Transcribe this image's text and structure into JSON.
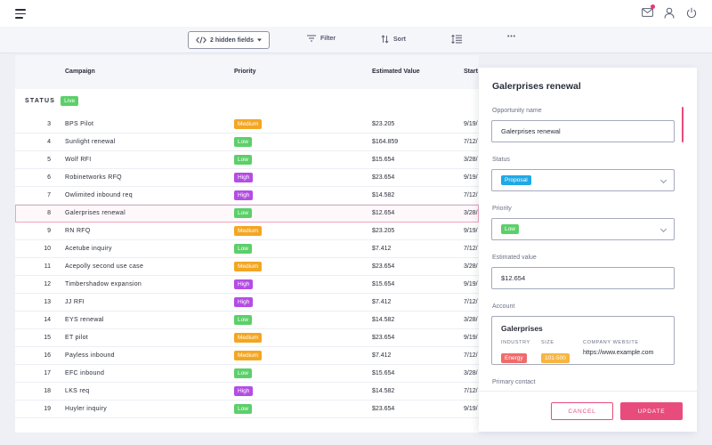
{
  "toolbar": {
    "hidden_fields_label": "2 hidden fields",
    "filter_label": "Filter",
    "sort_label": "Sort"
  },
  "table": {
    "columns": [
      "Campaign",
      "Priority",
      "Estimated Value",
      "Start"
    ],
    "status_label": "STATUS",
    "status_value": "Live",
    "rows": [
      {
        "num": "3",
        "name": "BPS Pilot",
        "priority": "Medium",
        "value": "$23.205",
        "start": "9/19/"
      },
      {
        "num": "4",
        "name": "Sunlight renewal",
        "priority": "Low",
        "value": "$164.859",
        "start": "7/12/"
      },
      {
        "num": "5",
        "name": "Wolf RFI",
        "priority": "Low",
        "value": "$15.654",
        "start": "3/28/"
      },
      {
        "num": "6",
        "name": "Robinetworks RFQ",
        "priority": "High",
        "value": "$23.654",
        "start": "9/19/"
      },
      {
        "num": "7",
        "name": "Owlimited inbound req",
        "priority": "High",
        "value": "$14.582",
        "start": "7/12/"
      },
      {
        "num": "8",
        "name": "Galerprises renewal",
        "priority": "Low",
        "value": "$12.654",
        "start": "3/28/"
      },
      {
        "num": "9",
        "name": "RN RFQ",
        "priority": "Medium",
        "value": "$23.205",
        "start": "9/19/"
      },
      {
        "num": "10",
        "name": "Acetube inquiry",
        "priority": "Low",
        "value": "$7.412",
        "start": "7/12/"
      },
      {
        "num": "11",
        "name": "Acepolly second use case",
        "priority": "Medium",
        "value": "$23.654",
        "start": "3/28/"
      },
      {
        "num": "12",
        "name": "Timbershadow expansion",
        "priority": "High",
        "value": "$15.654",
        "start": "9/19/"
      },
      {
        "num": "13",
        "name": "JJ RFI",
        "priority": "High",
        "value": "$7.412",
        "start": "7/12/"
      },
      {
        "num": "14",
        "name": "EYS renewal",
        "priority": "Low",
        "value": "$14.582",
        "start": "3/28/"
      },
      {
        "num": "15",
        "name": "ET pilot",
        "priority": "Medium",
        "value": "$23.654",
        "start": "9/19/"
      },
      {
        "num": "16",
        "name": "Payless inbound",
        "priority": "Medium",
        "value": "$7.412",
        "start": "7/12/"
      },
      {
        "num": "17",
        "name": "EFC inbound",
        "priority": "Low",
        "value": "$15.654",
        "start": "3/28/"
      },
      {
        "num": "18",
        "name": "LKS req",
        "priority": "High",
        "value": "$14.582",
        "start": "7/12/"
      },
      {
        "num": "19",
        "name": "Huyler inquiry",
        "priority": "Low",
        "value": "$23.654",
        "start": "9/19/"
      }
    ],
    "selected_row": "8"
  },
  "panel": {
    "title": "Galerprises renewal",
    "opportunity_label": "Opportunity name",
    "opportunity_value": "Galerprises renewal",
    "status_label": "Status",
    "status_value": "Proposal",
    "priority_label": "Priority",
    "priority_value": "Low",
    "estimated_label": "Estimated value",
    "estimated_value": "$12.654",
    "account_label": "Account",
    "account": {
      "name": "Galerprises",
      "industry_label": "INDUSTRY",
      "industry": "Energy",
      "size_label": "SIZE",
      "size": "101-500",
      "website_label": "COMPANY WEBSITE",
      "website": "https://www.example.com"
    },
    "contact_label": "Primary contact",
    "cancel_label": "CANCEL",
    "update_label": "UPDATE"
  },
  "colors": {
    "accent": "#e84c7d",
    "low": "#5ccf6a",
    "medium": "#f3a623",
    "high": "#b44de3",
    "proposal": "#1fa9e5"
  },
  "icons": [
    "menu-icon",
    "mail-icon",
    "user-icon",
    "power-icon",
    "code-icon",
    "filter-icon",
    "sort-icon",
    "row-height-icon",
    "more-icon"
  ]
}
